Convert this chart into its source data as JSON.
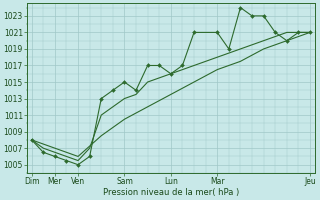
{
  "bg_color": "#c8e8e8",
  "grid_color": "#a0c8c8",
  "line_color": "#2d6a2d",
  "xlabel": "Pression niveau de la mer( hPa )",
  "ylim": [
    1004.0,
    1024.5
  ],
  "yticks": [
    1005,
    1007,
    1009,
    1011,
    1013,
    1015,
    1017,
    1019,
    1021,
    1023
  ],
  "xlim": [
    -0.2,
    12.2
  ],
  "x_tick_positions": [
    0,
    1,
    2,
    4,
    6,
    8,
    12
  ],
  "x_tick_labels": [
    "Dim",
    "Mer",
    "Ven",
    "Sam",
    "Lun",
    "Mar",
    "Jeu"
  ],
  "s1x": [
    0,
    0.5,
    1,
    1.5,
    2,
    2.5,
    3,
    3.5,
    4,
    4.5,
    5,
    5.5,
    6,
    6.5,
    7,
    8,
    8.5,
    9,
    9.5,
    10,
    10.5,
    11,
    11.5,
    12
  ],
  "s1y": [
    1008,
    1006.5,
    1006,
    1005.5,
    1005,
    1006,
    1013,
    1014,
    1015,
    1014,
    1017,
    1017,
    1016,
    1017,
    1021,
    1021,
    1019,
    1024,
    1023,
    1023,
    1021,
    1020,
    1021,
    1021
  ],
  "s2x": [
    0,
    0.5,
    1,
    1.5,
    2,
    2.5,
    3,
    3.5,
    4,
    4.5,
    5,
    5.5,
    6,
    6.5,
    7,
    8,
    8.5,
    9,
    9.5,
    10,
    10.5,
    11,
    11.5,
    12
  ],
  "s2y": [
    1008,
    1007,
    1006.5,
    1006,
    1005.5,
    1007,
    1011,
    1012,
    1013,
    1013.5,
    1015,
    1015.5,
    1016,
    1016.5,
    1017,
    1018,
    1018.5,
    1019,
    1019.5,
    1020,
    1020.5,
    1021,
    1021,
    1021
  ],
  "s3x": [
    0,
    1,
    2,
    3,
    4,
    5,
    6,
    7,
    8,
    9,
    10,
    11,
    12
  ],
  "s3y": [
    1008,
    1007,
    1006,
    1008.5,
    1010.5,
    1012,
    1013.5,
    1015,
    1016.5,
    1017.5,
    1019,
    1020,
    1021
  ]
}
